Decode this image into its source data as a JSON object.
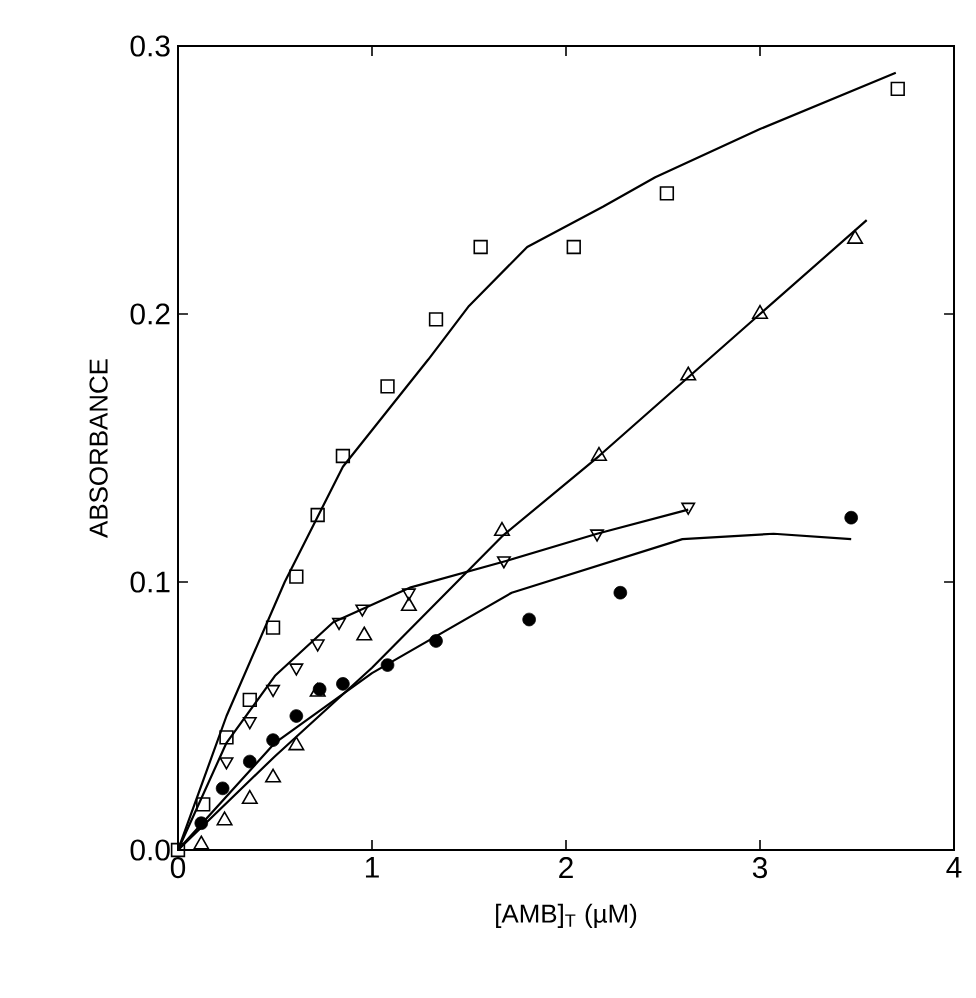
{
  "chart_data": {
    "type": "scatter",
    "xlabel": "[AMB]$_{T}$ (µM)",
    "ylabel": "ABSORBANCE",
    "xlim": [
      0,
      4
    ],
    "ylim": [
      0,
      0.3
    ],
    "xticks": [
      0,
      1,
      2,
      3,
      4
    ],
    "yticks": [
      {
        "value": 0,
        "label": "0.0"
      },
      0.1,
      0.2,
      0.3
    ],
    "grid": false,
    "series": [
      {
        "marker": "square",
        "color": "#000000",
        "x": [
          0,
          0.13,
          0.25,
          0.37,
          0.49,
          0.61,
          0.72,
          0.85,
          1.08,
          1.33,
          1.56,
          2.04,
          2.52,
          3.71
        ],
        "values": [
          0,
          0.017,
          0.042,
          0.056,
          0.083,
          0.102,
          0.125,
          0.147,
          0.173,
          0.198,
          0.225,
          0.225,
          0.245,
          0.284
        ]
      },
      {
        "marker": "triangle",
        "color": "#000000",
        "x": [
          0.12,
          0.24,
          0.37,
          0.49,
          0.61,
          0.72,
          0.96,
          1.19,
          1.67,
          2.17,
          2.63,
          3.0,
          3.49
        ],
        "values": [
          0.002,
          0.011,
          0.019,
          0.027,
          0.039,
          0.059,
          0.08,
          0.091,
          0.119,
          0.147,
          0.177,
          0.2,
          0.228
        ]
      },
      {
        "marker": "triangle_down",
        "color": "#000000",
        "x": [
          0.25,
          0.37,
          0.49,
          0.61,
          0.72,
          0.83,
          0.95,
          1.19,
          1.68,
          2.16,
          2.63
        ],
        "values": [
          0.033,
          0.048,
          0.06,
          0.068,
          0.077,
          0.085,
          0.09,
          0.096,
          0.108,
          0.118,
          0.128
        ]
      },
      {
        "marker": "circle",
        "color": "#000000",
        "x": [
          0.12,
          0.23,
          0.37,
          0.49,
          0.61,
          0.73,
          0.85,
          1.08,
          1.33,
          1.81,
          2.28,
          3.47
        ],
        "values": [
          0.01,
          0.023,
          0.033,
          0.041,
          0.05,
          0.06,
          0.062,
          0.069,
          0.078,
          0.086,
          0.096,
          0.124
        ]
      },
      {
        "type": "line",
        "marker": "none",
        "line_style": "solid",
        "color": "#000000",
        "x": [
          0,
          0.25,
          0.55,
          0.85,
          1.29,
          1.5,
          1.8,
          2.19,
          2.46,
          3.0,
          3.7
        ],
        "values": [
          0,
          0.05,
          0.1,
          0.143,
          0.183,
          0.203,
          0.225,
          0.24,
          0.251,
          0.269,
          0.29
        ]
      },
      {
        "type": "line",
        "marker": "none",
        "line_style": "solid",
        "color": "#000000",
        "x": [
          0,
          0.5,
          1.0,
          1.67,
          2.17,
          3.0,
          3.55
        ],
        "values": [
          0,
          0.035,
          0.068,
          0.117,
          0.147,
          0.2,
          0.235
        ]
      },
      {
        "type": "line",
        "marker": "none",
        "line_style": "solid",
        "color": "#000000",
        "x": [
          0,
          0.25,
          0.5,
          0.8,
          1.2,
          1.7,
          2.16,
          2.63
        ],
        "values": [
          0,
          0.04,
          0.065,
          0.085,
          0.098,
          0.108,
          0.118,
          0.127
        ]
      },
      {
        "type": "line",
        "marker": "none",
        "line_style": "solid",
        "color": "#000000",
        "x": [
          0,
          0.5,
          1.0,
          1.72,
          2.6,
          3.07,
          3.47
        ],
        "values": [
          0,
          0.04,
          0.066,
          0.096,
          0.116,
          0.118,
          0.116
        ]
      }
    ]
  }
}
